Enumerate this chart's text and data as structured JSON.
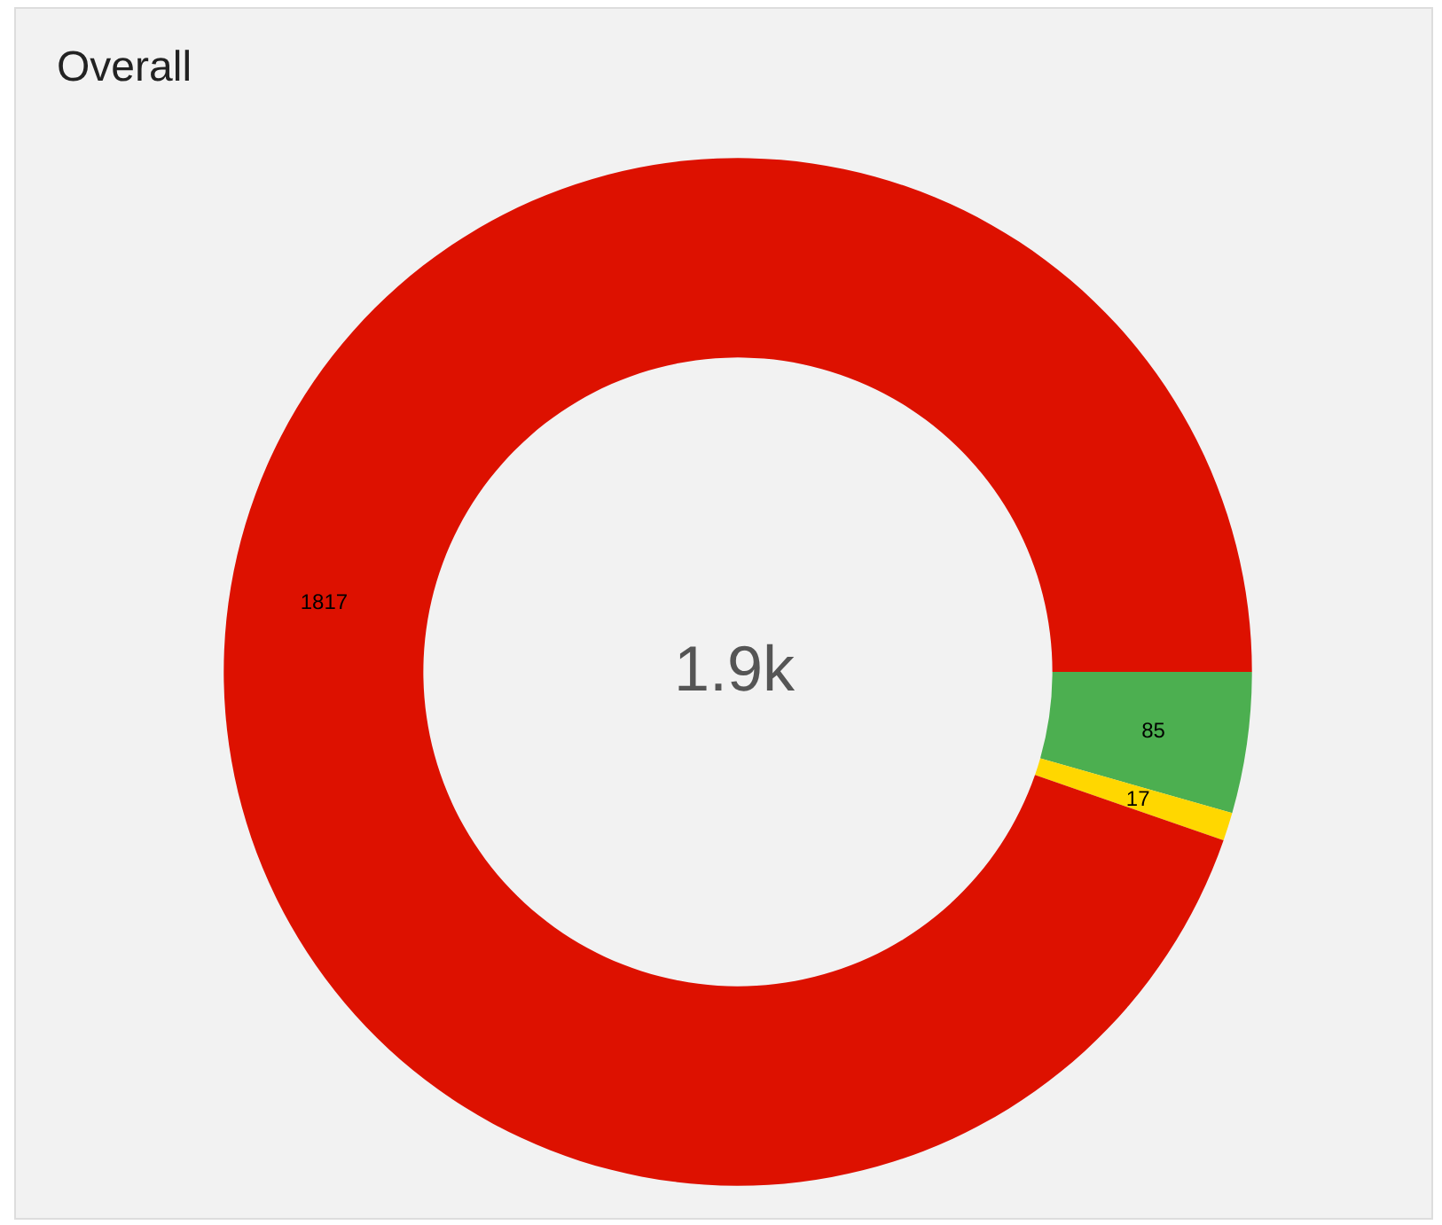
{
  "chart_data": {
    "type": "donut",
    "title": "Overall",
    "categories": [
      null,
      null,
      null
    ],
    "values": [
      85,
      17,
      1817
    ],
    "colors": [
      "#4caf50",
      "#ffd700",
      "#dd1100"
    ],
    "data_labels": true,
    "annotations": [
      "1.9k"
    ]
  }
}
